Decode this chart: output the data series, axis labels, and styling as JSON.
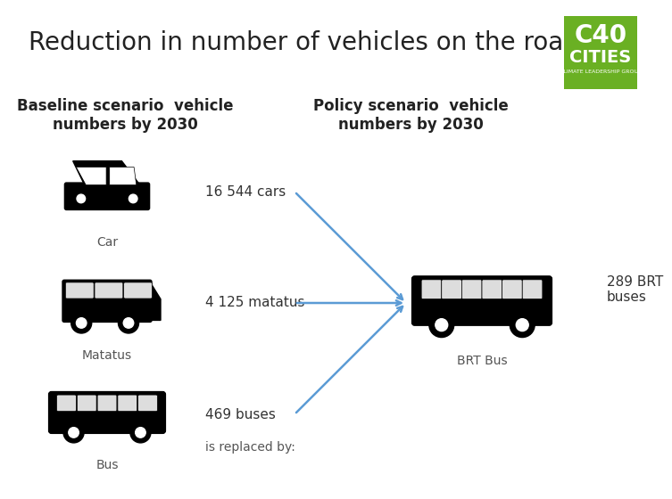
{
  "title": "Reduction in number of vehicles on the road",
  "title_fontsize": 20,
  "title_color": "#222222",
  "bg_color": "#ffffff",
  "baseline_header": "Baseline scenario  vehicle\nnumbers by 2030",
  "policy_header": "Policy scenario  vehicle\nnumbers by 2030",
  "header_fontsize": 12,
  "items": [
    {
      "label": "Car",
      "value": "16 544 cars"
    },
    {
      "label": "Matatus",
      "value": "4 125 matatus"
    },
    {
      "label": "Bus",
      "value": "469 buses"
    }
  ],
  "policy_item": {
    "label": "BRT Bus",
    "value": "289 BRT\nbuses"
  },
  "arrow_color": "#5b9bd5",
  "replaced_text": "is replaced by:",
  "logo_green": "#6ab023",
  "logo_text1": "C40",
  "logo_text2": "CITIES",
  "logo_text3": "CLIMATE LEADERSHIP GROUP",
  "icon_color": "#1a1a1a",
  "label_color": "#555555",
  "value_color": "#333333"
}
